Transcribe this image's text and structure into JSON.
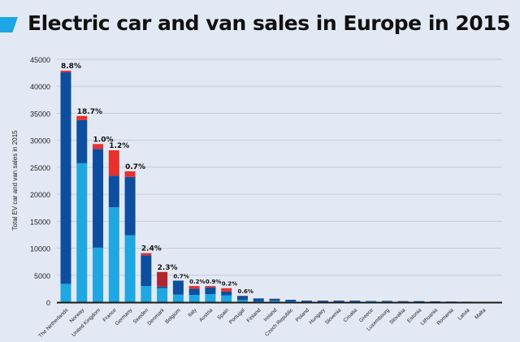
{
  "header": {
    "title": "Electric car and van sales in Europe in 2015"
  },
  "colors": {
    "segment_1": "#1ea7e1",
    "segment_2": "#0d4f9e",
    "segment_3": "#e8302c",
    "segment_3_denmark": "#b0262e",
    "background": "#e3e9f4"
  },
  "chart_data": {
    "type": "bar",
    "stacked": true,
    "title": "Electric car and van sales in Europe in 2015",
    "ylabel": "Total EV car and van sales in 2015",
    "xlabel": "",
    "ylim": [
      0,
      45000
    ],
    "yticks": [
      0,
      5000,
      10000,
      15000,
      20000,
      25000,
      30000,
      35000,
      40000,
      45000
    ],
    "grid": true,
    "categories": [
      "The Netherlands",
      "Norway",
      "United Kingdom",
      "France",
      "Germany",
      "Sweden",
      "Denmark",
      "Belgium",
      "Italy",
      "Austria",
      "Spain",
      "Portugal",
      "Finland",
      "Ireland",
      "Czech Republic",
      "Poland",
      "Hungary",
      "Slovenia",
      "Croatia",
      "Greece",
      "Luxembourg",
      "Slovakia",
      "Estonia",
      "Lithuania",
      "Romania",
      "Latvia",
      "Malta"
    ],
    "series": [
      {
        "values": [
          3400,
          25750,
          10100,
          17600,
          12400,
          3000,
          2600,
          1400,
          1350,
          1500,
          1250,
          400,
          150,
          250,
          150,
          100,
          100,
          100,
          100,
          200,
          100,
          100,
          80,
          60,
          60,
          40,
          30
        ]
      },
      {
        "values": [
          39200,
          8000,
          18300,
          5850,
          10800,
          5700,
          300,
          2600,
          1150,
          1250,
          750,
          750,
          550,
          350,
          300,
          200,
          200,
          200,
          200,
          50,
          150,
          100,
          120,
          100,
          60,
          50,
          20
        ]
      },
      {
        "values": [
          300,
          750,
          900,
          4700,
          1050,
          400,
          2700,
          0,
          500,
          250,
          600,
          50,
          0,
          50,
          0,
          0,
          0,
          0,
          0,
          0,
          0,
          20,
          0,
          0,
          0,
          0,
          0
        ]
      }
    ],
    "annotations": [
      "8.8%",
      "18.7%",
      "1.0%",
      "1.2%",
      "0.7%",
      "2.4%",
      "2.3%",
      "0.7%",
      "0.2%",
      "0.9%",
      "0.2%",
      "0.6%",
      "",
      "",
      "",
      "",
      "",
      "",
      "",
      "",
      "",
      "",
      "",
      "",
      "",
      "",
      ""
    ]
  }
}
